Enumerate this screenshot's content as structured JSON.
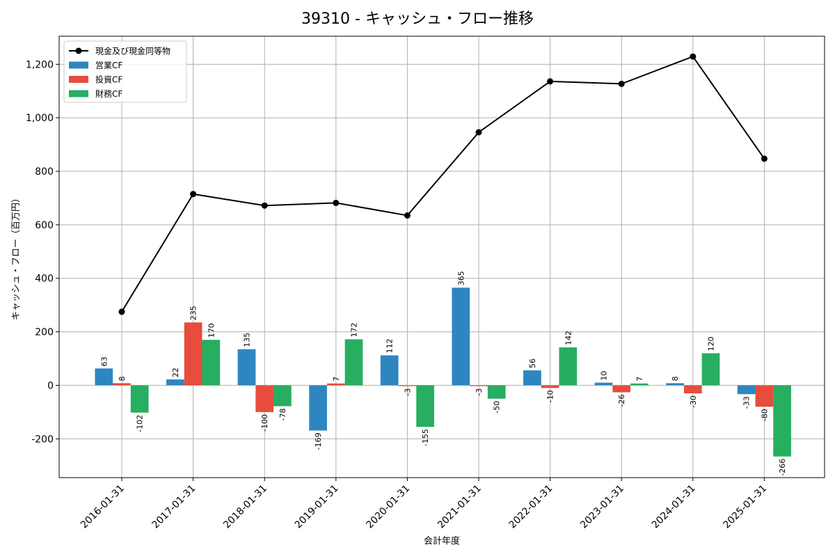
{
  "chart_data": {
    "type": "bar",
    "title": "39310 - キャッシュ・フロー推移",
    "xlabel": "会計年度",
    "ylabel": "キャッシュ・フロー（百万円）",
    "categories": [
      "2016-01-31",
      "2017-01-31",
      "2018-01-31",
      "2019-01-31",
      "2020-01-31",
      "2021-01-31",
      "2022-01-31",
      "2023-01-31",
      "2024-01-31",
      "2025-01-31"
    ],
    "ylim": [
      -345,
      1305
    ],
    "yticks": [
      -200,
      0,
      200,
      400,
      600,
      800,
      1000,
      1200
    ],
    "ytick_labels": [
      "-200",
      "0",
      "200",
      "400",
      "600",
      "800",
      "1,000",
      "1,200"
    ],
    "grid": true,
    "legend_position": "top-left",
    "series": [
      {
        "name": "営業CF",
        "type": "bar",
        "color": "#2e86c1",
        "values": [
          63,
          22,
          135,
          -169,
          112,
          365,
          56,
          10,
          8,
          -33
        ]
      },
      {
        "name": "投資CF",
        "type": "bar",
        "color": "#e74c3c",
        "values": [
          8,
          235,
          -100,
          7,
          -3,
          -3,
          -10,
          -26,
          -30,
          -80
        ]
      },
      {
        "name": "財務CF",
        "type": "bar",
        "color": "#27ae60",
        "values": [
          -102,
          170,
          -78,
          172,
          -155,
          -50,
          142,
          7,
          120,
          -266
        ]
      },
      {
        "name": "現金及び現金同等物",
        "type": "line",
        "color": "#000000",
        "values": [
          275,
          715,
          672,
          682,
          635,
          946,
          1136,
          1127,
          1229,
          847
        ]
      }
    ]
  }
}
